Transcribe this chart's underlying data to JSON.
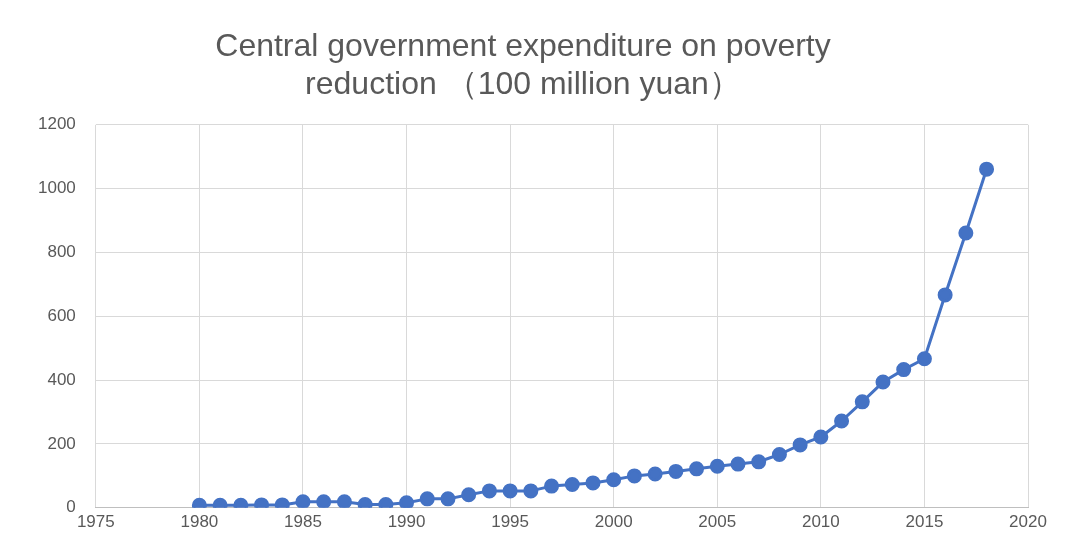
{
  "chart_data": {
    "type": "line",
    "title": [
      "Central government expenditure on poverty",
      "reduction （100 million yuan）"
    ],
    "x": [
      1980,
      1981,
      1982,
      1983,
      1984,
      1985,
      1986,
      1987,
      1988,
      1989,
      1990,
      1991,
      1992,
      1993,
      1994,
      1995,
      1996,
      1997,
      1998,
      1999,
      2000,
      2001,
      2002,
      2003,
      2004,
      2005,
      2006,
      2007,
      2008,
      2009,
      2010,
      2011,
      2012,
      2013,
      2014,
      2015,
      2016,
      2017,
      2018
    ],
    "series": [
      {
        "color": "#4472c4",
        "values": [
          8,
          8,
          8,
          9,
          9,
          19,
          19,
          19,
          10,
          10,
          16,
          28,
          28,
          41,
          53,
          53,
          53,
          68,
          73,
          78,
          88,
          100,
          106,
          114,
          122,
          130,
          137,
          144,
          167,
          197,
          222,
          272,
          332,
          394,
          433,
          467,
          667,
          861,
          1061
        ]
      }
    ],
    "xlim": [
      1975,
      2020
    ],
    "xticks": [
      1975,
      1980,
      1985,
      1990,
      1995,
      2000,
      2005,
      2010,
      2015,
      2020
    ],
    "ylim": [
      0,
      1200
    ],
    "yticks": [
      0,
      200,
      400,
      600,
      800,
      1000,
      1200
    ],
    "grid": true,
    "legend": false,
    "marker": "circle",
    "line_style": "solid"
  }
}
